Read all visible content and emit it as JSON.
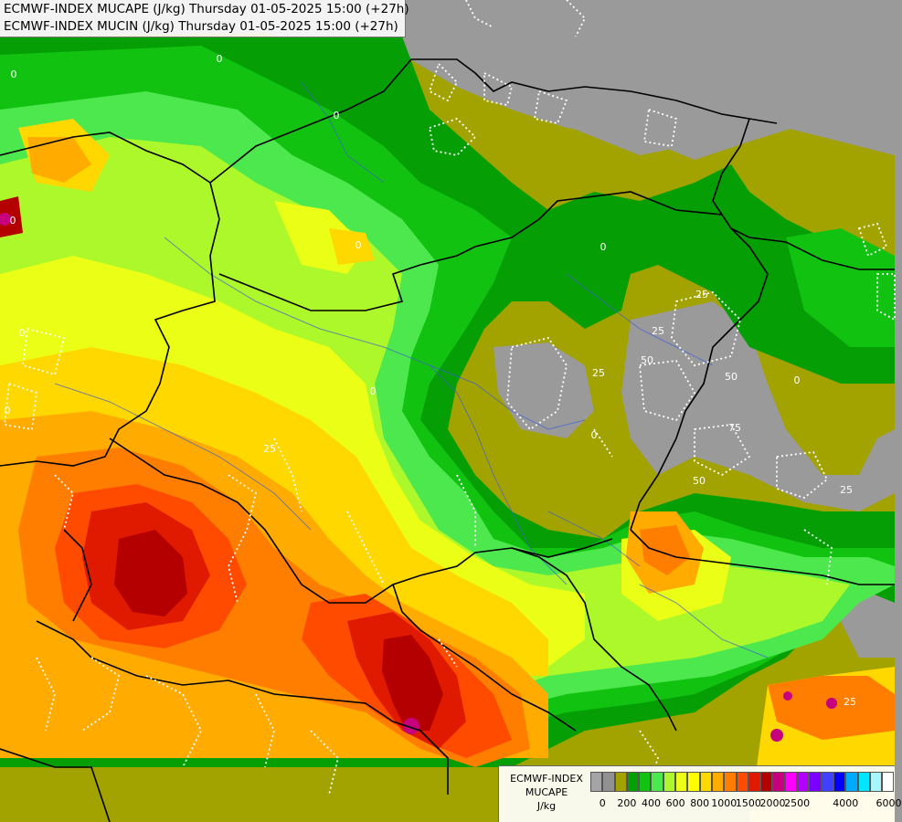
{
  "titles": {
    "line1": "ECMWF-INDEX MUCAPE (J/kg) Thursday 01-05-2025 15:00 (+27h)",
    "line2": "ECMWF-INDEX MUCIN (J/kg) Thursday 01-05-2025 15:00 (+27h)"
  },
  "legend": {
    "line1": "ECMWF-INDEX",
    "line2": "MUCAPE",
    "unit": "J/kg",
    "colors": [
      "#a5a5a5",
      "#919191",
      "#a2a200",
      "#059e05",
      "#11c211",
      "#4de84d",
      "#acf82a",
      "#eaff15",
      "#ffff00",
      "#ffd800",
      "#ffab00",
      "#ff7e00",
      "#ff4b00",
      "#e01a00",
      "#b40000",
      "#c7007e",
      "#ff00ff",
      "#b400ff",
      "#7a00ff",
      "#4040ff",
      "#0000ff",
      "#00aaff",
      "#00e6ff",
      "#a6f6ff",
      "#ffffff"
    ],
    "ticks": [
      "0",
      "200",
      "400",
      "600",
      "800",
      "1000",
      "1500",
      "2000",
      "2500",
      "4000",
      "6000"
    ]
  },
  "map_colors": {
    "no_data": "#9a9a9a",
    "olive": "#a2a200",
    "border": "#000000",
    "river": "#4060d0",
    "cin_contour": "#ffffff"
  },
  "contour_labels": [
    "0",
    "0",
    "0",
    "0",
    "0",
    "0",
    "0",
    "0",
    "0",
    "25",
    "25",
    "25",
    "25",
    "25",
    "50",
    "50",
    "50",
    "75",
    "0",
    "25",
    "0"
  ]
}
